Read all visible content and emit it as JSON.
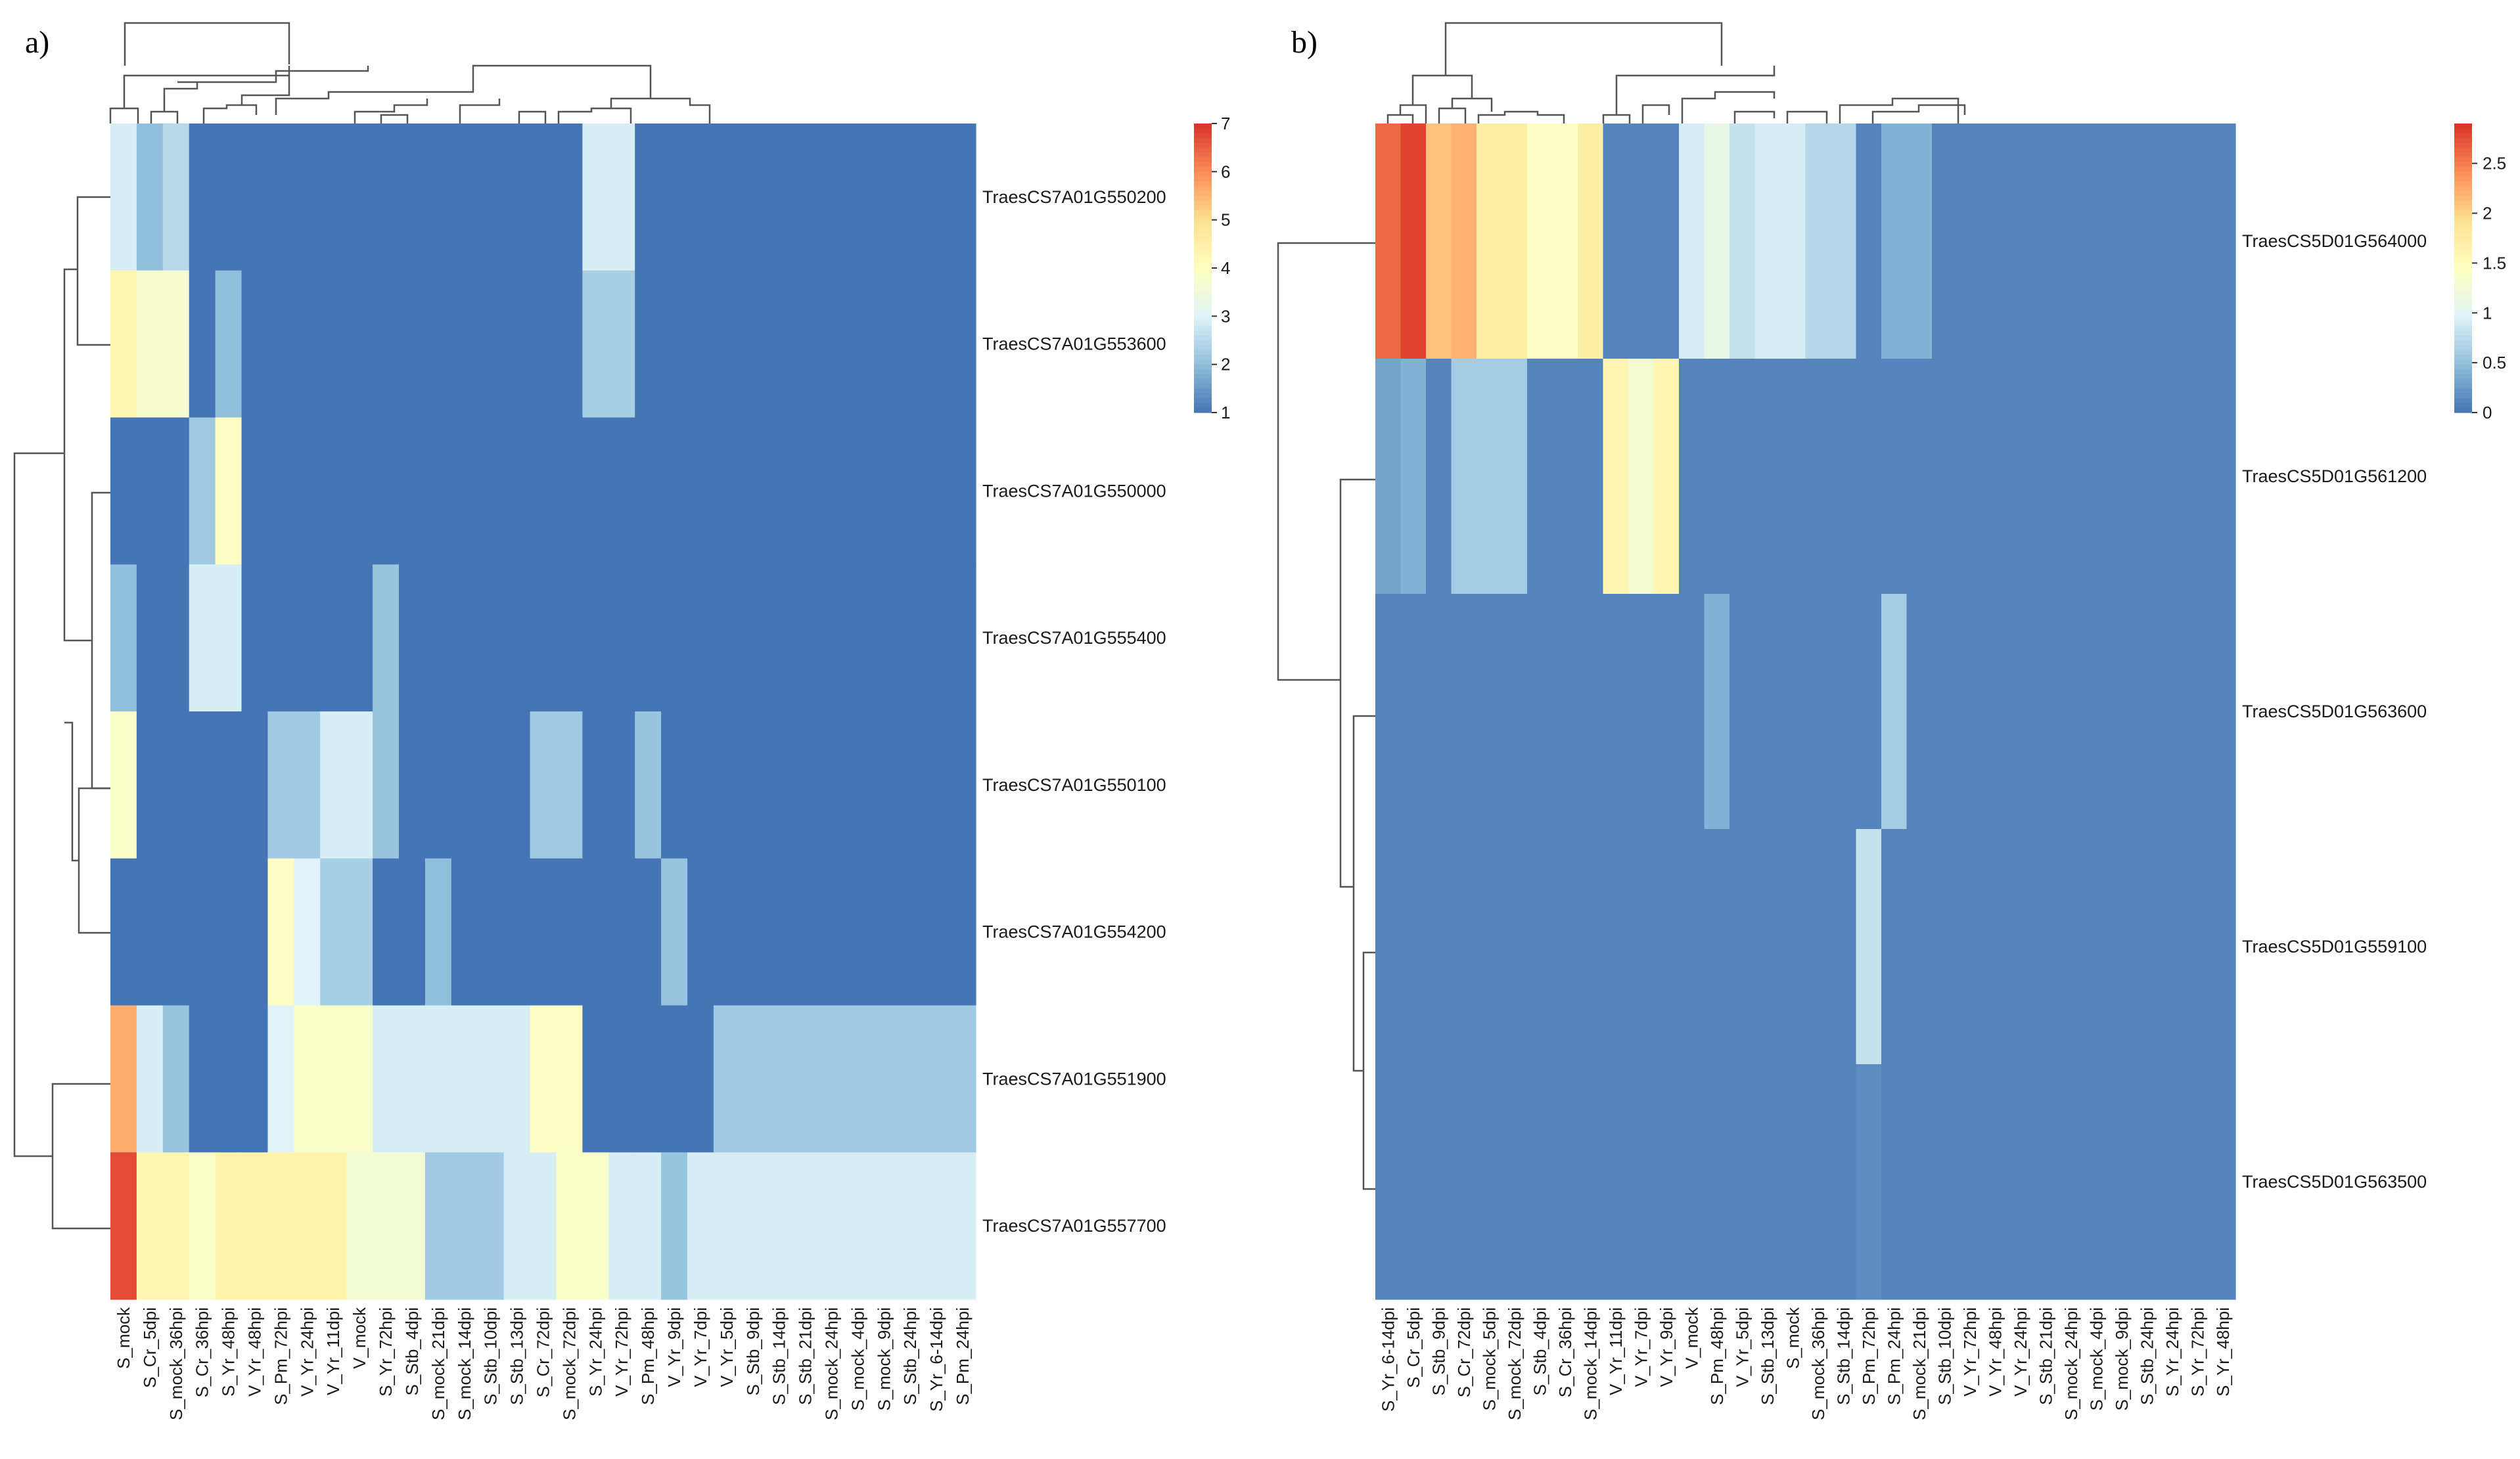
{
  "chart_data": [
    {
      "type": "heatmap",
      "panel_label": "a)",
      "rows": [
        "TraesCS7A01G550200",
        "TraesCS7A01G553600",
        "TraesCS7A01G550000",
        "TraesCS7A01G555400",
        "TraesCS7A01G550100",
        "TraesCS7A01G554200",
        "TraesCS7A01G551900",
        "TraesCS7A01G557700"
      ],
      "columns": [
        "S_mock",
        "S_Cr_5dpi",
        "S_mock_36hpi",
        "S_Cr_36hpi",
        "S_Yr_48hpi",
        "V_Yr_48hpi",
        "S_Pm_72hpi",
        "V_Yr_24hpi",
        "V_Yr_11dpi",
        "V_mock",
        "S_Yr_72hpi",
        "S_Stb_4dpi",
        "S_mock_21dpi",
        "S_mock_14dpi",
        "S_Stb_10dpi",
        "S_Stb_13dpi",
        "S_Cr_72dpi",
        "S_mock_72dpi",
        "S_Yr_24hpi",
        "V_Yr_72hpi",
        "S_Pm_48hpi",
        "V_Yr_9dpi",
        "V_Yr_7dpi",
        "V_Yr_5dpi",
        "S_Stb_9dpi",
        "S_Stb_14dpi",
        "S_Stb_21dpi",
        "S_mock_24hpi",
        "S_mock_4dpi",
        "S_mock_9dpi",
        "S_Stb_24hpi",
        "S_Yr_6-14dpi",
        "S_Pm_24hpi"
      ],
      "values": [
        [
          2.9,
          2,
          2.5,
          1,
          1,
          1,
          1,
          1,
          1,
          1,
          1,
          1,
          1,
          1,
          1,
          1,
          1,
          1,
          2.9,
          2.9,
          1,
          1,
          1,
          1,
          1,
          1,
          1,
          1,
          1,
          1,
          1,
          1,
          1
        ],
        [
          4.3,
          3.7,
          3.7,
          1,
          2,
          1,
          1,
          1,
          1,
          1,
          1,
          1,
          1,
          1,
          1,
          1,
          1,
          1,
          2.3,
          2.3,
          1,
          1,
          1,
          1,
          1,
          1,
          1,
          1,
          1,
          1,
          1,
          1,
          1
        ],
        [
          1,
          1,
          1,
          2.2,
          3.9,
          1,
          1,
          1,
          1,
          1,
          1,
          1,
          1,
          1,
          1,
          1,
          1,
          1,
          1,
          1,
          1,
          1,
          1,
          1,
          1,
          1,
          1,
          1,
          1,
          1,
          1,
          1,
          1
        ],
        [
          2,
          1,
          1,
          2.9,
          2.9,
          1,
          1,
          1,
          1,
          1,
          2.1,
          1,
          1,
          1,
          1,
          1,
          1,
          1,
          1,
          1,
          1,
          1,
          1,
          1,
          1,
          1,
          1,
          1,
          1,
          1,
          1,
          1,
          1
        ],
        [
          3.8,
          1,
          1,
          1,
          1,
          1,
          2.2,
          2.2,
          2.9,
          2.9,
          2.1,
          1,
          1,
          1,
          1,
          1,
          2.2,
          2.2,
          1,
          1,
          2.1,
          1,
          1,
          1,
          1,
          1,
          1,
          1,
          1,
          1,
          1,
          1,
          1
        ],
        [
          1,
          1,
          1,
          1,
          1,
          1,
          3.9,
          3,
          2.3,
          2.3,
          1,
          1,
          2,
          1,
          1,
          1,
          1,
          1,
          1,
          1,
          1,
          2.1,
          1,
          1,
          1,
          1,
          1,
          1,
          1,
          1,
          1,
          1,
          1
        ],
        [
          5.6,
          2.9,
          2.1,
          1,
          1,
          1,
          3,
          3.8,
          3.8,
          3.8,
          2.9,
          2.9,
          2.9,
          2.9,
          2.9,
          2.9,
          3.9,
          3.9,
          1,
          1,
          1,
          1,
          1,
          2.2,
          2.2,
          2.2,
          2.2,
          2.2,
          2.2,
          2.2,
          2.2,
          2.2,
          2.2
        ],
        [
          6.7,
          4.3,
          4.3,
          3.8,
          4.4,
          4.4,
          4.4,
          4.4,
          4.4,
          3.6,
          3.6,
          3.6,
          2.2,
          2.2,
          2.2,
          2.9,
          2.9,
          3.8,
          3.8,
          2.9,
          2.9,
          2.1,
          2.9,
          2.9,
          2.9,
          2.9,
          2.9,
          2.9,
          2.9,
          2.9,
          2.9,
          2.9,
          2.9
        ]
      ],
      "colorbar": {
        "min": 1,
        "max": 7,
        "ticks": [
          "7",
          "6",
          "5",
          "4",
          "3",
          "2",
          "1"
        ]
      },
      "palette": [
        "#4575b4",
        "#91bfdb",
        "#e0f3f8",
        "#ffffbf",
        "#fee090",
        "#fc8d59",
        "#d73027"
      ]
    },
    {
      "type": "heatmap",
      "panel_label": "b)",
      "rows": [
        "TraesCS5D01G564000",
        "TraesCS5D01G561200",
        "TraesCS5D01G563600",
        "TraesCS5D01G559100",
        "TraesCS5D01G563500"
      ],
      "columns": [
        "S_Yr_6-14dpi",
        "S_Cr_5dpi",
        "S_Stb_9dpi",
        "S_Cr_72dpi",
        "S_mock_5dpi",
        "S_mock_72dpi",
        "S_Stb_4dpi",
        "S_Cr_36hpi",
        "S_mock_14dpi",
        "V_Yr_11dpi",
        "V_Yr_7dpi",
        "V_Yr_9dpi",
        "V_mock",
        "S_Pm_48hpi",
        "V_Yr_5dpi",
        "S_Stb_13dpi",
        "S_mock",
        "S_mock_36hpi",
        "S_Stb_14dpi",
        "S_Pm_72hpi",
        "S_Pm_24hpi",
        "S_mock_21dpi",
        "S_Stb_10dpi",
        "V_Yr_72hpi",
        "V_Yr_48hpi",
        "V_Yr_24hpi",
        "S_Stb_21dpi",
        "S_mock_24hpi",
        "S_mock_4dpi",
        "S_mock_9dpi",
        "S_Stb_24hpi",
        "S_Yr_24hpi",
        "S_Yr_72hpi",
        "S_Yr_48hpi"
      ],
      "values": [
        [
          2.6,
          2.8,
          2.1,
          2.2,
          1.7,
          1.7,
          1.4,
          1.4,
          1.7,
          0.1,
          0.1,
          0.1,
          0.9,
          1.1,
          0.8,
          0.9,
          0.9,
          0.7,
          0.7,
          0.1,
          0.4,
          0.4,
          0.1,
          0.1,
          0.1,
          0.1,
          0.1,
          0.1,
          0.1,
          0.1,
          0.1,
          0.1,
          0.1,
          0.1
        ],
        [
          0.3,
          0.4,
          0.1,
          0.6,
          0.6,
          0.6,
          0.1,
          0.1,
          0.1,
          1.6,
          1.3,
          1.6,
          0.1,
          0.1,
          0.1,
          0.1,
          0.1,
          0.1,
          0.1,
          0.1,
          0.1,
          0.1,
          0.1,
          0.1,
          0.1,
          0.1,
          0.1,
          0.1,
          0.1,
          0.1,
          0.1,
          0.1,
          0.1,
          0.1
        ],
        [
          0.1,
          0.1,
          0.1,
          0.1,
          0.1,
          0.1,
          0.1,
          0.1,
          0.1,
          0.1,
          0.1,
          0.1,
          0.1,
          0.4,
          0.1,
          0.1,
          0.1,
          0.1,
          0.1,
          0.1,
          0.6,
          0.1,
          0.1,
          0.1,
          0.1,
          0.1,
          0.1,
          0.1,
          0.1,
          0.1,
          0.1,
          0.1,
          0.1,
          0.1
        ],
        [
          0.1,
          0.1,
          0.1,
          0.1,
          0.1,
          0.1,
          0.1,
          0.1,
          0.1,
          0.1,
          0.1,
          0.1,
          0.1,
          0.1,
          0.1,
          0.1,
          0.1,
          0.1,
          0.1,
          0.8,
          0.1,
          0.1,
          0.1,
          0.1,
          0.1,
          0.1,
          0.1,
          0.1,
          0.1,
          0.1,
          0.1,
          0.1,
          0.1,
          0.1
        ],
        [
          0.1,
          0.1,
          0.1,
          0.1,
          0.1,
          0.1,
          0.1,
          0.1,
          0.1,
          0.1,
          0.1,
          0.1,
          0.1,
          0.1,
          0.1,
          0.1,
          0.1,
          0.1,
          0.1,
          0.15,
          0.1,
          0.1,
          0.1,
          0.1,
          0.1,
          0.1,
          0.1,
          0.1,
          0.1,
          0.1,
          0.1,
          0.1,
          0.1,
          0.1
        ]
      ],
      "colorbar": {
        "min": 0,
        "max": 2.9,
        "ticks": [
          "2.5",
          "2",
          "1.5",
          "1",
          "0.5",
          "0"
        ]
      },
      "palette": [
        "#4575b4",
        "#91bfdb",
        "#e0f3f8",
        "#ffffbf",
        "#fee090",
        "#fc8d59",
        "#d73027"
      ]
    }
  ]
}
